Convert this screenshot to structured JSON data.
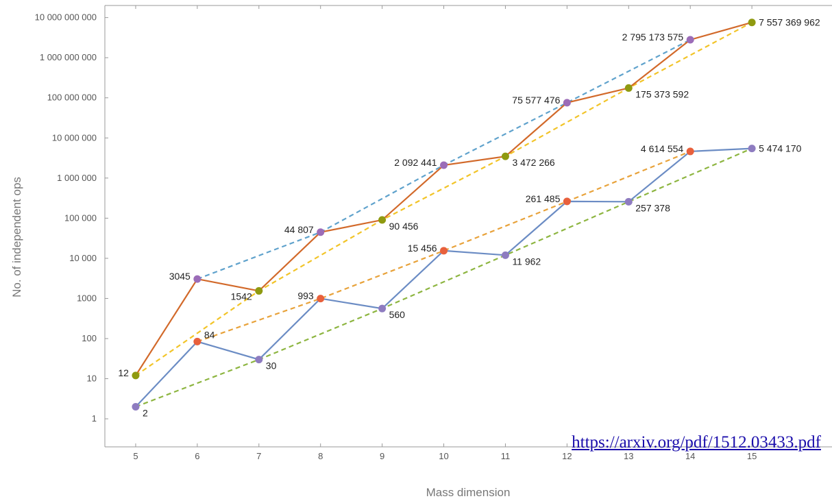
{
  "source_link": "https://arxiv.org/pdf/1512.03433.pdf",
  "chart_data": {
    "type": "line",
    "xlabel": "Mass dimension",
    "ylabel": "No. of independent ops",
    "yscale": "log",
    "xlim": [
      4.5,
      16.3
    ],
    "ylim": [
      0.2,
      20000000000
    ],
    "x_ticks": [
      5,
      6,
      7,
      8,
      9,
      10,
      11,
      12,
      13,
      14,
      15
    ],
    "y_ticks": [
      {
        "value": 1,
        "label": "1"
      },
      {
        "value": 10,
        "label": "10"
      },
      {
        "value": 100,
        "label": "100"
      },
      {
        "value": 1000,
        "label": "1000"
      },
      {
        "value": 10000,
        "label": "10 000"
      },
      {
        "value": 100000,
        "label": "100 000"
      },
      {
        "value": 1000000,
        "label": "1 000 000"
      },
      {
        "value": 10000000,
        "label": "10 000 000"
      },
      {
        "value": 100000000,
        "label": "100 000 000"
      },
      {
        "value": 1000000000,
        "label": "1 000 000 000"
      },
      {
        "value": 10000000000,
        "label": "10 000 000 000"
      }
    ],
    "grid": false,
    "colors": {
      "solid_upper": "#d2692a",
      "solid_lower": "#6b8cc4",
      "dash_blue": "#5fa2cc",
      "dash_yellow": "#f2c428",
      "dash_orange": "#e8a23a",
      "dash_green": "#8db540",
      "point_purple": "#9b6cb8",
      "point_olive": "#8f9a10",
      "point_orange": "#e8603c",
      "point_lavender": "#8e7cc0"
    },
    "series": [
      {
        "key": "upper",
        "style": "solid",
        "color": "#d2692a",
        "points": [
          {
            "x": 5,
            "y": 12,
            "label": "12",
            "color": "#8f9a10",
            "pos": "left"
          },
          {
            "x": 6,
            "y": 3045,
            "label": "3045",
            "color": "#9b6cb8",
            "pos": "left"
          },
          {
            "x": 7,
            "y": 1542,
            "label": "1542",
            "color": "#8f9a10",
            "pos": "left-below"
          },
          {
            "x": 8,
            "y": 44807,
            "label": "44 807",
            "color": "#9b6cb8",
            "pos": "left"
          },
          {
            "x": 9,
            "y": 90456,
            "label": "90 456",
            "color": "#8f9a10",
            "pos": "right-below"
          },
          {
            "x": 10,
            "y": 2092441,
            "label": "2 092 441",
            "color": "#9b6cb8",
            "pos": "left"
          },
          {
            "x": 11,
            "y": 3472266,
            "label": "3 472 266",
            "color": "#8f9a10",
            "pos": "right-below"
          },
          {
            "x": 12,
            "y": 75577476,
            "label": "75 577 476",
            "color": "#9b6cb8",
            "pos": "left"
          },
          {
            "x": 13,
            "y": 175373592,
            "label": "175 373 592",
            "color": "#8f9a10",
            "pos": "right-below"
          },
          {
            "x": 14,
            "y": 2795173575,
            "label": "2 795 173 575",
            "color": "#9b6cb8",
            "pos": "left"
          },
          {
            "x": 15,
            "y": 7557369962,
            "label": "7 557 369 962",
            "color": "#8f9a10",
            "pos": "right"
          }
        ]
      },
      {
        "key": "lower",
        "style": "solid",
        "color": "#6b8cc4",
        "points": [
          {
            "x": 5,
            "y": 2,
            "label": "2",
            "color": "#8e7cc0",
            "pos": "right-below"
          },
          {
            "x": 6,
            "y": 84,
            "label": "84",
            "color": "#e8603c",
            "pos": "right-above"
          },
          {
            "x": 7,
            "y": 30,
            "label": "30",
            "color": "#8e7cc0",
            "pos": "right-below"
          },
          {
            "x": 8,
            "y": 993,
            "label": "993",
            "color": "#e8603c",
            "pos": "left"
          },
          {
            "x": 9,
            "y": 560,
            "label": "560",
            "color": "#8e7cc0",
            "pos": "right-below"
          },
          {
            "x": 10,
            "y": 15456,
            "label": "15 456",
            "color": "#e8603c",
            "pos": "left"
          },
          {
            "x": 11,
            "y": 11962,
            "label": "11 962",
            "color": "#8e7cc0",
            "pos": "right-below"
          },
          {
            "x": 12,
            "y": 261485,
            "label": "261 485",
            "color": "#e8603c",
            "pos": "left"
          },
          {
            "x": 13,
            "y": 257378,
            "label": "257 378",
            "color": "#8e7cc0",
            "pos": "right-below"
          },
          {
            "x": 14,
            "y": 4614554,
            "label": "4 614 554",
            "color": "#e8603c",
            "pos": "left"
          },
          {
            "x": 15,
            "y": 5474170,
            "label": "5 474 170",
            "color": "#8e7cc0",
            "pos": "right"
          }
        ]
      },
      {
        "key": "dash-even-upper",
        "style": "dashed",
        "color": "#5fa2cc",
        "x": [
          6,
          8,
          10,
          12,
          14
        ],
        "y": [
          3045,
          44807,
          2092441,
          75577476,
          2795173575
        ]
      },
      {
        "key": "dash-odd-upper",
        "style": "dashed",
        "color": "#f2c428",
        "x": [
          5,
          7,
          9,
          11,
          13,
          15
        ],
        "y": [
          12,
          1542,
          90456,
          3472266,
          175373592,
          7557369962
        ]
      },
      {
        "key": "dash-even-lower",
        "style": "dashed",
        "color": "#e8a23a",
        "x": [
          6,
          8,
          10,
          12,
          14
        ],
        "y": [
          84,
          993,
          15456,
          261485,
          4614554
        ]
      },
      {
        "key": "dash-odd-lower",
        "style": "dashed",
        "color": "#8db540",
        "x": [
          5,
          7,
          9,
          11,
          13,
          15
        ],
        "y": [
          2,
          30,
          560,
          11962,
          257378,
          5474170
        ]
      }
    ]
  }
}
